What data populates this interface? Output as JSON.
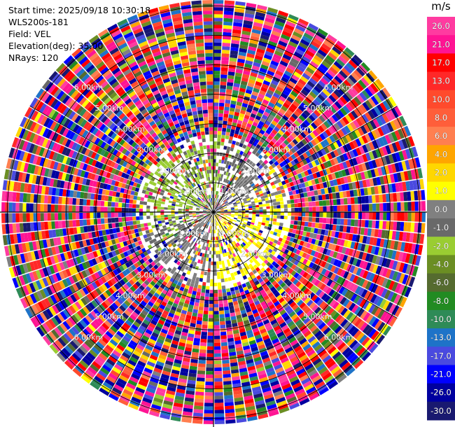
{
  "header": {
    "start_time": "Start time: 2025/09/18 10:30:18",
    "instrument": "WLS200s-181",
    "field": "Field: VEL",
    "elevation": "Elevation(deg): 35.00",
    "nrays": "NRays: 120"
  },
  "chart_data": {
    "type": "heatmap",
    "projection": "polar-ppi",
    "field": "VEL",
    "units": "m/s",
    "nrays": 120,
    "elevation_deg": 35.0,
    "max_range_km": 7.2,
    "range_rings_km": [
      1,
      2,
      3,
      4,
      5,
      6,
      7
    ],
    "range_labels": [
      "1.00km",
      "2.00km",
      "3.00km",
      "4.00km",
      "5.00km",
      "6.00km"
    ],
    "spoke_angles_deg": [
      0,
      30,
      60,
      90,
      120,
      150,
      180,
      210,
      240,
      270,
      300,
      330
    ],
    "colorbar": {
      "unit_label": "m/s",
      "ticks": [
        "26.0",
        "21.0",
        "17.0",
        "13.0",
        "10.0",
        "8.0",
        "6.0",
        "4.0",
        "2.0",
        "1.0",
        "0.0",
        "-1.0",
        "-2.0",
        "-4.0",
        "-6.0",
        "-8.0",
        "-10.0",
        "-13.0",
        "-17.0",
        "-21.0",
        "-26.0",
        "-30.0"
      ],
      "bins": [
        {
          "lo": 26,
          "hi": 30,
          "color": "#ff3ba0"
        },
        {
          "lo": 21,
          "hi": 26,
          "color": "#ff1493"
        },
        {
          "lo": 17,
          "hi": 21,
          "color": "#ff0000"
        },
        {
          "lo": 13,
          "hi": 17,
          "color": "#ff2828"
        },
        {
          "lo": 10,
          "hi": 13,
          "color": "#ff4a2c"
        },
        {
          "lo": 8,
          "hi": 10,
          "color": "#ff5e3a"
        },
        {
          "lo": 6,
          "hi": 8,
          "color": "#ff7f50"
        },
        {
          "lo": 4,
          "hi": 6,
          "color": "#ffa500"
        },
        {
          "lo": 2,
          "hi": 4,
          "color": "#ffd700"
        },
        {
          "lo": 1,
          "hi": 2,
          "color": "#ffff00"
        },
        {
          "lo": 0,
          "hi": 1,
          "color": "#808080"
        },
        {
          "lo": -1,
          "hi": 0,
          "color": "#696969"
        },
        {
          "lo": -2,
          "hi": -1,
          "color": "#9acd32"
        },
        {
          "lo": -4,
          "hi": -2,
          "color": "#6b8e23"
        },
        {
          "lo": -6,
          "hi": -4,
          "color": "#556b2f"
        },
        {
          "lo": -8,
          "hi": -6,
          "color": "#228b22"
        },
        {
          "lo": -10,
          "hi": -8,
          "color": "#2e8b57"
        },
        {
          "lo": -13,
          "hi": -10,
          "color": "#1e73c8"
        },
        {
          "lo": -17,
          "hi": -13,
          "color": "#4a4ae0"
        },
        {
          "lo": -21,
          "hi": -17,
          "color": "#0000ff"
        },
        {
          "lo": -26,
          "hi": -21,
          "color": "#0000a0"
        },
        {
          "lo": -30,
          "hi": -26,
          "color": "#191970"
        }
      ]
    }
  }
}
